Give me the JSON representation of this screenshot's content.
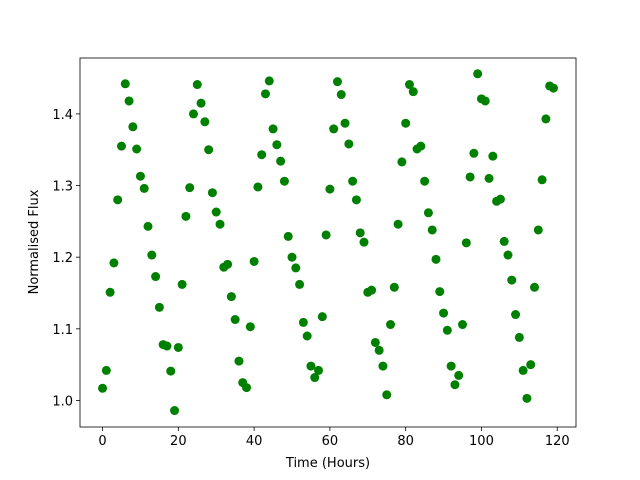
{
  "chart_data": {
    "type": "scatter",
    "x_label": "Time (Hours)",
    "y_label": "Normalised Flux",
    "color": "#008000",
    "grid": false,
    "xlim": [
      -5.95,
      124.95
    ],
    "ylim": [
      0.963,
      1.478
    ],
    "xticks": [
      0,
      20,
      40,
      60,
      80,
      100,
      120
    ],
    "yticks": [
      {
        "value": 1,
        "label": "1.0"
      },
      1.1,
      1.2,
      1.3,
      1.4
    ],
    "x": [
      0,
      1,
      2,
      3,
      4,
      5,
      6,
      7,
      8,
      9,
      10,
      11,
      12,
      13,
      14,
      15,
      16,
      17,
      18,
      19,
      20,
      21,
      22,
      23,
      24,
      25,
      26,
      27,
      28,
      29,
      30,
      31,
      32,
      33,
      34,
      35,
      36,
      37,
      38,
      39,
      40,
      41,
      42,
      43,
      44,
      45,
      46,
      47,
      48,
      49,
      50,
      51,
      52,
      53,
      54,
      55,
      56,
      57,
      58,
      59,
      60,
      61,
      62,
      63,
      64,
      65,
      66,
      67,
      68,
      69,
      70,
      71,
      72,
      73,
      74,
      75,
      76,
      77,
      78,
      79,
      80,
      81,
      82,
      83,
      84,
      85,
      86,
      87,
      88,
      89,
      90,
      91,
      92,
      93,
      94,
      95,
      96,
      97,
      98,
      99,
      100,
      101,
      102,
      103,
      104,
      105,
      106,
      107,
      108,
      109,
      110,
      111,
      112,
      113,
      114,
      115,
      116,
      117,
      118,
      119
    ],
    "values": [
      1.017,
      1.042,
      1.151,
      1.192,
      1.28,
      1.355,
      1.442,
      1.418,
      1.382,
      1.351,
      1.313,
      1.296,
      1.243,
      1.203,
      1.173,
      1.13,
      1.078,
      1.076,
      1.041,
      0.986,
      1.074,
      1.162,
      1.257,
      1.297,
      1.4,
      1.441,
      1.415,
      1.389,
      1.35,
      1.29,
      1.263,
      1.246,
      1.186,
      1.19,
      1.145,
      1.113,
      1.055,
      1.025,
      1.018,
      1.103,
      1.194,
      1.298,
      1.343,
      1.428,
      1.446,
      1.379,
      1.357,
      1.334,
      1.306,
      1.229,
      1.2,
      1.185,
      1.162,
      1.109,
      1.09,
      1.048,
      1.032,
      1.042,
      1.117,
      1.231,
      1.295,
      1.379,
      1.445,
      1.427,
      1.387,
      1.358,
      1.306,
      1.28,
      1.234,
      1.221,
      1.151,
      1.154,
      1.081,
      1.07,
      1.048,
      1.008,
      1.106,
      1.158,
      1.246,
      1.333,
      1.387,
      1.441,
      1.431,
      1.351,
      1.355,
      1.306,
      1.262,
      1.238,
      1.197,
      1.152,
      1.122,
      1.098,
      1.048,
      1.022,
      1.035,
      1.106,
      1.22,
      1.312,
      1.345,
      1.456,
      1.421,
      1.418,
      1.31,
      1.341,
      1.278,
      1.281,
      1.222,
      1.203,
      1.168,
      1.12,
      1.088,
      1.042,
      1.003,
      1.05,
      1.158,
      1.238,
      1.308,
      1.393,
      1.439,
      1.436
    ]
  }
}
